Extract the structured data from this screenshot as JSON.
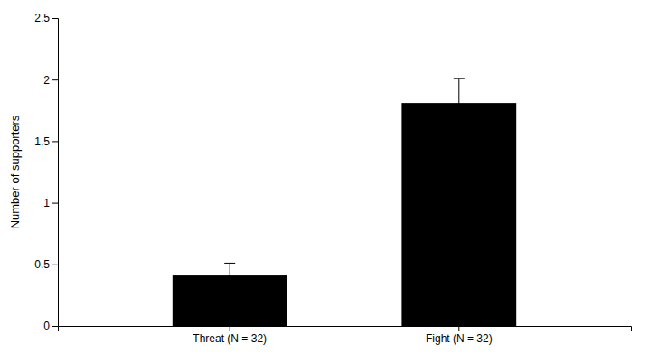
{
  "chart_data": {
    "type": "bar",
    "categories": [
      "Threat (N = 32)",
      "Fight (N = 32)"
    ],
    "values": [
      0.41,
      1.81
    ],
    "errors": [
      0.1,
      0.2
    ],
    "color": "#000000",
    "ylabel": "Number of supporters",
    "ylim": [
      0,
      2.5
    ],
    "yticks": [
      0,
      0.5,
      1,
      1.5,
      2,
      2.5
    ],
    "grid": false
  }
}
